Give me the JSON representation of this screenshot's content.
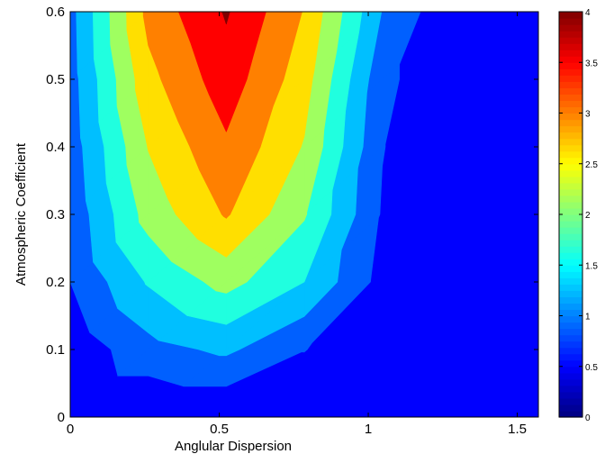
{
  "chart_data": {
    "type": "contourf",
    "xlabel": "Anglular Dispersion",
    "ylabel": "Atmospheric Coefficient",
    "xlim": [
      0,
      1.5708
    ],
    "ylim": [
      0,
      0.6
    ],
    "xticks": [
      0,
      0.5,
      1,
      1.5
    ],
    "xtick_labels": [
      "0",
      "0.5",
      "1",
      "1.5"
    ],
    "yticks": [
      0,
      0.1,
      0.2,
      0.3,
      0.4,
      0.5,
      0.6
    ],
    "ytick_labels": [
      "0",
      "0.1",
      "0.2",
      "0.3",
      "0.4",
      "0.5",
      "0.6"
    ],
    "colorbar": {
      "range": [
        0,
        4
      ],
      "ticks": [
        0,
        0.5,
        1,
        1.5,
        2,
        2.5,
        3,
        3.5,
        4
      ],
      "tick_labels": [
        "0",
        "0.5",
        "1",
        "1.5",
        "2",
        "2.5",
        "3",
        "3.5",
        "4"
      ],
      "colormap": "jet"
    },
    "levels": [
      0,
      0.5,
      1,
      1.5,
      2,
      2.5,
      3,
      3.5,
      4
    ],
    "level_colors": [
      "#00008f",
      "#0000ff",
      "#0060ff",
      "#00bfff",
      "#20ffdf",
      "#9fff60",
      "#ffdf00",
      "#ff8000",
      "#ff0000",
      "#800000"
    ],
    "grid": {
      "x": [
        0,
        0.2618,
        0.5236,
        0.7854,
        1.0472,
        1.309,
        1.5708
      ],
      "y": [
        0,
        0.1,
        0.2,
        0.3,
        0.4,
        0.5,
        0.6
      ],
      "z": [
        [
          0.0,
          0.0,
          0.0,
          0.0,
          0.0,
          0.0,
          0.0
        ],
        [
          0.15,
          0.82,
          1.1,
          0.52,
          0.0,
          0.0,
          0.0
        ],
        [
          0.5,
          1.55,
          2.18,
          1.5,
          0.32,
          0.0,
          0.1
        ],
        [
          0.62,
          2.2,
          3.05,
          2.05,
          0.45,
          0.0,
          0.35
        ],
        [
          0.72,
          2.52,
          3.42,
          2.46,
          0.52,
          0.0,
          0.3
        ],
        [
          0.78,
          2.85,
          3.78,
          2.72,
          0.64,
          0.0,
          0.38
        ],
        [
          0.82,
          3.15,
          4.05,
          2.97,
          0.98,
          0.0,
          0.44
        ]
      ]
    }
  }
}
